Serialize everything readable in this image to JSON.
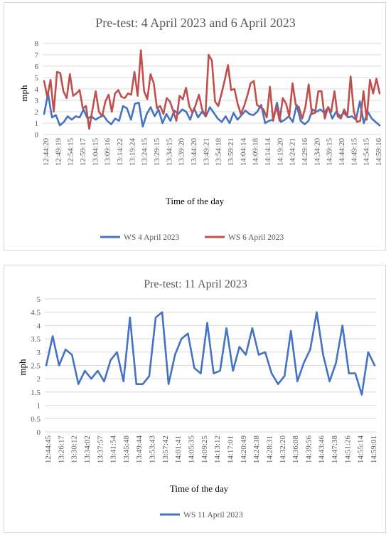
{
  "chart_data": [
    {
      "type": "line",
      "title": "Pre-test: 4 April 2023 and 6 April 2023",
      "xlabel": "Time of the day",
      "ylabel": "mph",
      "ylim": [
        0,
        8
      ],
      "yticks": [
        "0",
        "1",
        "2",
        "3",
        "4",
        "5",
        "6",
        "7",
        "8"
      ],
      "x_tick_labels": [
        "12:44:20",
        "12:49:19",
        "12:54:15",
        "12:59:17",
        "13:04:15",
        "13:09:16",
        "13:14:22",
        "13:19:24",
        "13:24:15",
        "13:29:15",
        "13:34:15",
        "13:39:20",
        "13:44:20",
        "13:49:21",
        "13:54:18",
        "13:59:21",
        "14:04:14",
        "14:09:18",
        "14:14:14",
        "14:19:20",
        "14:24:21",
        "14:29:16",
        "14:34:20",
        "14:39:15",
        "14:44:20",
        "14:49:15",
        "14:54:15",
        "14:59:16"
      ],
      "grid": true,
      "legend_position": "bottom",
      "colors": [
        "#4472C4",
        "#C0504D"
      ],
      "series": [
        {
          "name": "WS 4 April 2023",
          "values": [
            1.8,
            3.6,
            1.5,
            1.7,
            0.8,
            1.1,
            1.6,
            1.3,
            1.6,
            1.5,
            2.2,
            1.4,
            1.6,
            1.3,
            1.5,
            1.7,
            1.2,
            0.9,
            1.4,
            1.2,
            2.5,
            2.3,
            1.3,
            2.7,
            2.8,
            0.7,
            1.8,
            2.4,
            1.6,
            2.2,
            1.0,
            1.8,
            1.2,
            2.1,
            1.8,
            2.2,
            2.0,
            1.3,
            2.3,
            1.5,
            2.0,
            1.6,
            2.4,
            1.9,
            1.4,
            1.1,
            1.6,
            1.0,
            1.9,
            1.3,
            1.7,
            2.1,
            1.8,
            1.7,
            2.0,
            2.6,
            1.0,
            1.2,
            1.3,
            2.8,
            1.1,
            1.3,
            1.6,
            1.1,
            2.6,
            1.2,
            0.9,
            1.2,
            2.2,
            2.0,
            2.2,
            1.9,
            2.4,
            1.4,
            2.0,
            1.6,
            1.9,
            1.5,
            1.6,
            1.3,
            2.9,
            1.0,
            2.0,
            1.4,
            1.1,
            0.8
          ],
          "x_count": 86
        },
        {
          "name": "WS 6 April 2023",
          "values": [
            4.7,
            3.3,
            4.8,
            2.0,
            5.5,
            5.4,
            3.8,
            3.2,
            5.3,
            3.4,
            3.6,
            3.9,
            2.3,
            2.5,
            0.5,
            2.2,
            3.8,
            2.0,
            1.6,
            2.9,
            3.5,
            2.0,
            3.6,
            3.9,
            3.3,
            3.2,
            3.6,
            3.5,
            5.5,
            3.4,
            7.4,
            3.8,
            3.1,
            5.3,
            4.5,
            2.3,
            2.5,
            1.8,
            3.2,
            2.9,
            2.1,
            1.2,
            3.4,
            3.1,
            4.1,
            2.5,
            1.9,
            2.6,
            3.5,
            2.2,
            1.6,
            7.0,
            6.5,
            2.9,
            2.5,
            3.6,
            4.8,
            6.1,
            3.9,
            4.0,
            2.7,
            1.8,
            2.5,
            3.4,
            4.5,
            4.7,
            2.6,
            2.4,
            2.2,
            1.5,
            4.2,
            1.2,
            2.5,
            1.2,
            3.2,
            2.7,
            1.6,
            4.5,
            2.6,
            2.4,
            1.4,
            2.4,
            4.4,
            1.8,
            1.9,
            3.8,
            3.8,
            1.4,
            2.4,
            2.0,
            3.8,
            1.6,
            1.4,
            2.2,
            1.6,
            5.1,
            2.0,
            1.1,
            1.2,
            3.8,
            1.3,
            4.8,
            3.6,
            4.9,
            3.6
          ],
          "x_count": 106
        }
      ]
    },
    {
      "type": "line",
      "title": "Pre-test: 11 April 2023",
      "xlabel": "Time of the day",
      "ylabel": "mph",
      "ylim": [
        0,
        5
      ],
      "yticks": [
        "0",
        "0.5",
        "1",
        "1.5",
        "2",
        "2.5",
        "3",
        "3.5",
        "4",
        "4.5",
        "5"
      ],
      "x_tick_labels": [
        "12:44:45",
        "13:26:17",
        "13:30:12",
        "13:34:02",
        "13:37:57",
        "13:41:54",
        "13:45:48",
        "13:49:44",
        "13:53:43",
        "13:57:42",
        "14:01:41",
        "14:05:35",
        "14:09:25",
        "14:13:12",
        "14:17:01",
        "14:20:49",
        "14:24:38",
        "14:28:31",
        "14:32:20",
        "14:36:08",
        "14:39:56",
        "14:43:46",
        "14:47:38",
        "14:51:26",
        "14:55:14",
        "14:59:01"
      ],
      "grid": true,
      "legend_position": "bottom",
      "colors": [
        "#4472C4"
      ],
      "series": [
        {
          "name": "WS 11 April 2023",
          "values": [
            2.5,
            3.6,
            2.5,
            3.1,
            2.9,
            1.8,
            2.3,
            2.0,
            2.3,
            1.9,
            2.7,
            3.0,
            1.9,
            4.3,
            1.8,
            1.8,
            2.1,
            4.3,
            4.5,
            1.8,
            2.9,
            3.5,
            3.7,
            2.4,
            2.2,
            4.1,
            2.2,
            2.3,
            3.9,
            2.3,
            3.2,
            2.9,
            3.9,
            2.9,
            3.0,
            2.2,
            1.8,
            2.1,
            3.8,
            1.9,
            2.6,
            3.1,
            4.5,
            2.9,
            1.9,
            2.6,
            4.0,
            2.2,
            2.2,
            1.4,
            3.0,
            2.5
          ]
        }
      ]
    }
  ]
}
